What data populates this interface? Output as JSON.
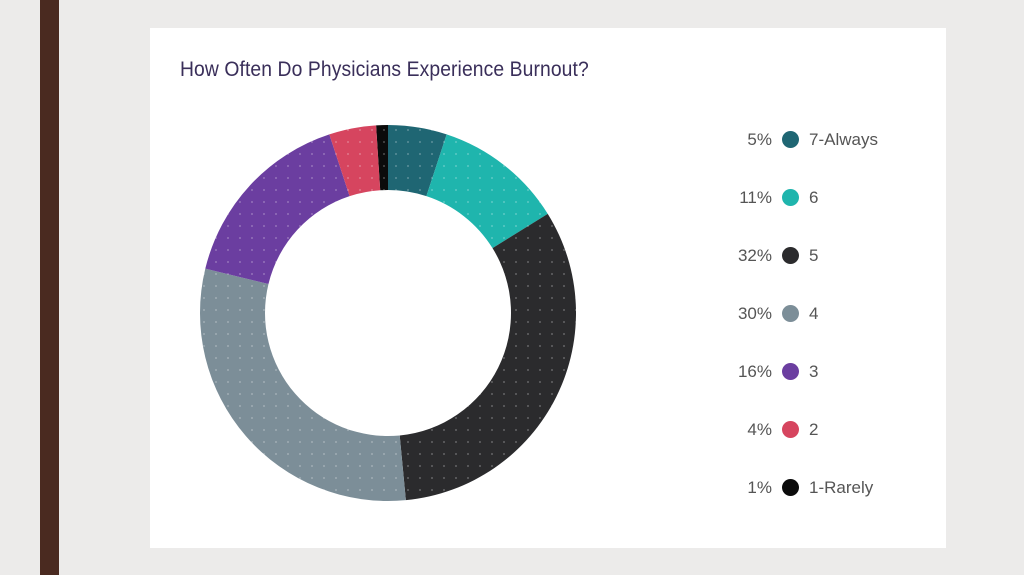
{
  "chart_data": {
    "type": "pie",
    "title": "How Often Do Physicians Experience Burnout?",
    "categories": [
      "7-Always",
      "6",
      "5",
      "4",
      "3",
      "2",
      "1-Rarely"
    ],
    "values": [
      5,
      11,
      32,
      30,
      16,
      4,
      1
    ],
    "value_labels": [
      "5%",
      "11%",
      "32%",
      "30%",
      "16%",
      "4%",
      "1%"
    ],
    "colors": [
      "#1f6673",
      "#1fb5ad",
      "#2b2b2d",
      "#7c8e98",
      "#6b3ea0",
      "#d6455f",
      "#0b0b0b"
    ],
    "donut": true,
    "legend": "right"
  }
}
